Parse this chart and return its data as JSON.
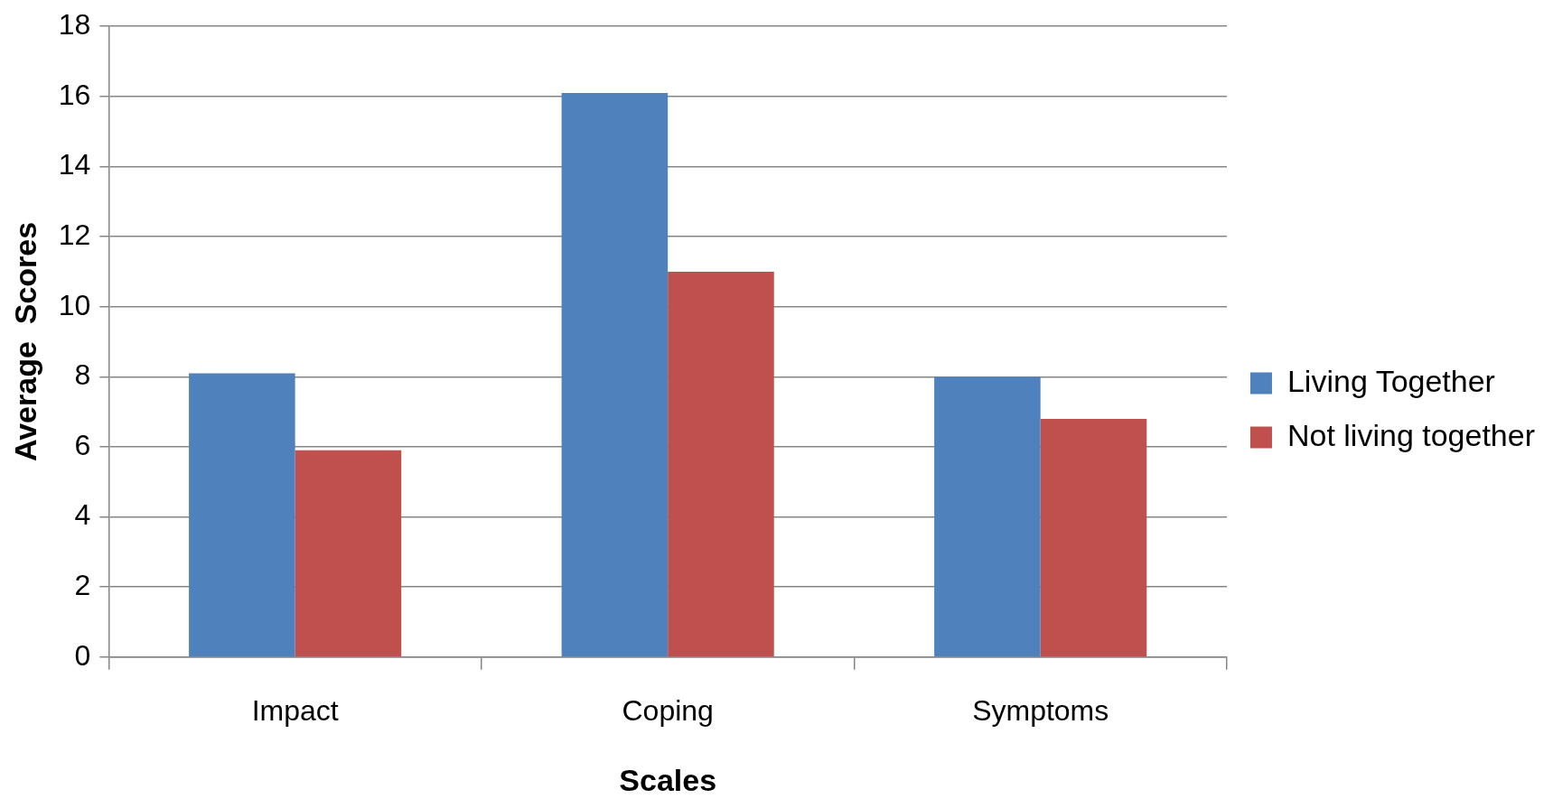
{
  "chart_data": {
    "type": "bar",
    "xlabel": "Scales",
    "ylabel": "Average  Scores",
    "categories": [
      "Impact",
      "Coping",
      "Symptoms"
    ],
    "series": [
      {
        "name": "Living Together",
        "color": "#4f81bd",
        "values": [
          8.1,
          16.1,
          8.0
        ]
      },
      {
        "name": "Not living together",
        "color": "#c0504d",
        "values": [
          5.9,
          11.0,
          6.8
        ]
      }
    ],
    "ylim": [
      0,
      18
    ],
    "yticks": [
      0,
      2,
      4,
      6,
      8,
      10,
      12,
      14,
      16,
      18
    ],
    "grid": "y",
    "legend": "right"
  }
}
